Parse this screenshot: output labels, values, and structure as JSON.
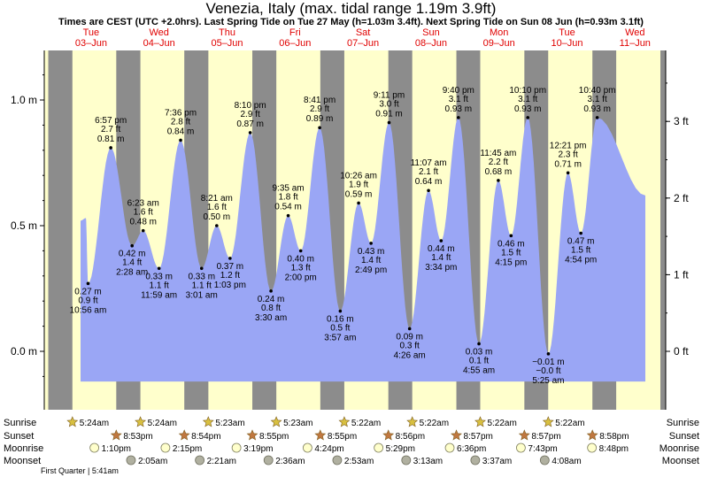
{
  "header": {
    "title": "Venezia, Italy (max. tidal range 1.19m 3.9ft)",
    "subtitle": "Times are CEST (UTC +2.0hrs). Last Spring Tide on Tue 27 May (h=1.03m 3.4ft). Next Spring Tide on Sun 08 Jun (h=0.93m 3.1ft)"
  },
  "colors": {
    "water": "#9aa6f5",
    "day": "#ffffcc",
    "night": "#8c8c8c",
    "day_label": "#e00000",
    "sun_icon": "#d8c040",
    "sunset_icon": "#c07840",
    "moonrise_icon": "#ffffcc",
    "moonset_icon": "#b0b0a0"
  },
  "chart_data": {
    "type": "area",
    "title": "Venezia, Italy (max. tidal range 1.19m 3.9ft)",
    "ylim_m": [
      -0.12,
      1.2
    ],
    "y_ticks_m": [
      "1.0 m",
      "0.5 m",
      "0.0 m"
    ],
    "y_ticks_ft": [
      "3 ft",
      "2 ft",
      "1 ft",
      "0 ft"
    ],
    "days": [
      {
        "dow": "Tue",
        "date": "03–Jun"
      },
      {
        "dow": "Wed",
        "date": "04–Jun"
      },
      {
        "dow": "Thu",
        "date": "05–Jun"
      },
      {
        "dow": "Fri",
        "date": "06–Jun"
      },
      {
        "dow": "Sat",
        "date": "07–Jun"
      },
      {
        "dow": "Sun",
        "date": "08–Jun"
      },
      {
        "dow": "Mon",
        "date": "09–Jun"
      },
      {
        "dow": "Tue",
        "date": "10–Jun"
      },
      {
        "dow": "Wed",
        "date": "11–Jun"
      }
    ],
    "tides": [
      {
        "day": 0,
        "time": "10:56 am",
        "height_m": 0.27,
        "height_ft": "0.9 ft",
        "type": "low"
      },
      {
        "day": 0,
        "time": "6:57 pm",
        "height_m": 0.81,
        "height_ft": "2.7 ft",
        "type": "high"
      },
      {
        "day": 1,
        "time": "2:28 am",
        "height_m": 0.42,
        "height_ft": "1.4 ft",
        "type": "low"
      },
      {
        "day": 1,
        "time": "6:23 am",
        "height_m": 0.48,
        "height_ft": "1.6 ft",
        "type": "high"
      },
      {
        "day": 1,
        "time": "11:59 am",
        "height_m": 0.33,
        "height_ft": "1.1 ft",
        "type": "low"
      },
      {
        "day": 1,
        "time": "7:36 pm",
        "height_m": 0.84,
        "height_ft": "2.8 ft",
        "type": "high"
      },
      {
        "day": 2,
        "time": "3:01 am",
        "height_m": 0.33,
        "height_ft": "1.1 ft",
        "type": "low"
      },
      {
        "day": 2,
        "time": "8:21 am",
        "height_m": 0.5,
        "height_ft": "1.6 ft",
        "type": "high"
      },
      {
        "day": 2,
        "time": "1:03 pm",
        "height_m": 0.37,
        "height_ft": "1.2 ft",
        "type": "low"
      },
      {
        "day": 2,
        "time": "8:10 pm",
        "height_m": 0.87,
        "height_ft": "2.9 ft",
        "type": "high"
      },
      {
        "day": 3,
        "time": "3:30 am",
        "height_m": 0.24,
        "height_ft": "0.8 ft",
        "type": "low"
      },
      {
        "day": 3,
        "time": "9:35 am",
        "height_m": 0.54,
        "height_ft": "1.8 ft",
        "type": "high"
      },
      {
        "day": 3,
        "time": "2:00 pm",
        "height_m": 0.4,
        "height_ft": "1.3 ft",
        "type": "low"
      },
      {
        "day": 3,
        "time": "8:41 pm",
        "height_m": 0.89,
        "height_ft": "2.9 ft",
        "type": "high"
      },
      {
        "day": 4,
        "time": "3:57 am",
        "height_m": 0.16,
        "height_ft": "0.5 ft",
        "type": "low"
      },
      {
        "day": 4,
        "time": "10:26 am",
        "height_m": 0.59,
        "height_ft": "1.9 ft",
        "type": "high"
      },
      {
        "day": 4,
        "time": "2:49 pm",
        "height_m": 0.43,
        "height_ft": "1.4 ft",
        "type": "low"
      },
      {
        "day": 4,
        "time": "9:11 pm",
        "height_m": 0.91,
        "height_ft": "3.0 ft",
        "type": "high"
      },
      {
        "day": 5,
        "time": "4:26 am",
        "height_m": 0.09,
        "height_ft": "0.3 ft",
        "type": "low"
      },
      {
        "day": 5,
        "time": "11:07 am",
        "height_m": 0.64,
        "height_ft": "2.1 ft",
        "type": "high"
      },
      {
        "day": 5,
        "time": "3:34 pm",
        "height_m": 0.44,
        "height_ft": "1.4 ft",
        "type": "low"
      },
      {
        "day": 5,
        "time": "9:40 pm",
        "height_m": 0.93,
        "height_ft": "3.1 ft",
        "type": "high"
      },
      {
        "day": 6,
        "time": "4:55 am",
        "height_m": 0.03,
        "height_ft": "0.1 ft",
        "type": "low"
      },
      {
        "day": 6,
        "time": "11:45 am",
        "height_m": 0.68,
        "height_ft": "2.2 ft",
        "type": "high"
      },
      {
        "day": 6,
        "time": "4:15 pm",
        "height_m": 0.46,
        "height_ft": "1.5 ft",
        "type": "low"
      },
      {
        "day": 6,
        "time": "10:10 pm",
        "height_m": 0.93,
        "height_ft": "3.1 ft",
        "type": "high"
      },
      {
        "day": 7,
        "time": "5:25 am",
        "height_m": -0.01,
        "height_ft": "-0.0 ft",
        "type": "low"
      },
      {
        "day": 7,
        "time": "12:21 pm",
        "height_m": 0.71,
        "height_ft": "2.3 ft",
        "type": "high"
      },
      {
        "day": 7,
        "time": "4:54 pm",
        "height_m": 0.47,
        "height_ft": "1.5 ft",
        "type": "low"
      },
      {
        "day": 7,
        "time": "10:40 pm",
        "height_m": 0.93,
        "height_ft": "3.1 ft",
        "type": "high"
      }
    ],
    "sun": [
      {
        "sunrise": "5:24am",
        "sunset": "8:53pm"
      },
      {
        "sunrise": "5:24am",
        "sunset": "8:54pm"
      },
      {
        "sunrise": "5:23am",
        "sunset": "8:55pm"
      },
      {
        "sunrise": "5:23am",
        "sunset": "8:55pm"
      },
      {
        "sunrise": "5:22am",
        "sunset": "8:56pm"
      },
      {
        "sunrise": "5:22am",
        "sunset": "8:57pm"
      },
      {
        "sunrise": "5:22am",
        "sunset": "8:57pm"
      },
      {
        "sunrise": "5:22am",
        "sunset": "8:58pm"
      }
    ],
    "moonrise": [
      "1:10pm",
      "2:15pm",
      "3:19pm",
      "4:24pm",
      "5:29pm",
      "6:36pm",
      "7:43pm",
      "8:48pm"
    ],
    "moonset": [
      "2:05am",
      "2:21am",
      "2:36am",
      "2:53am",
      "3:13am",
      "3:37am",
      "4:08am"
    ],
    "moonset_days": [
      1,
      2,
      3,
      4,
      5,
      6,
      7
    ],
    "row_labels": {
      "sunrise": "Sunrise",
      "sunset": "Sunset",
      "moonrise": "Moonrise",
      "moonset": "Moonset"
    },
    "moon_phase": "First Quarter | 5:41am"
  }
}
